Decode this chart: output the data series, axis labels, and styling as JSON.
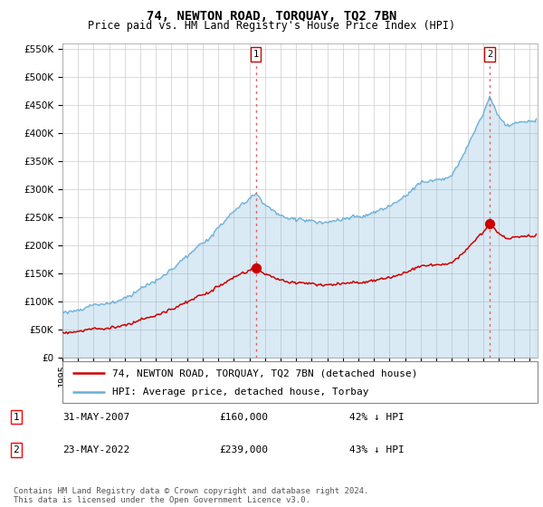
{
  "title": "74, NEWTON ROAD, TORQUAY, TQ2 7BN",
  "subtitle": "Price paid vs. HM Land Registry's House Price Index (HPI)",
  "ylim": [
    0,
    560000
  ],
  "yticks": [
    0,
    50000,
    100000,
    150000,
    200000,
    250000,
    300000,
    350000,
    400000,
    450000,
    500000,
    550000
  ],
  "hpi_color": "#6baed6",
  "hpi_fill_color": "#d6eaf8",
  "price_color": "#cc0000",
  "grid_color": "#cccccc",
  "background_color": "#ffffff",
  "legend_entry_1": "74, NEWTON ROAD, TORQUAY, TQ2 7BN (detached house)",
  "legend_entry_2": "HPI: Average price, detached house, Torbay",
  "transaction_1_date": "31-MAY-2007",
  "transaction_1_price": "£160,000",
  "transaction_1_hpi": "42% ↓ HPI",
  "transaction_2_date": "23-MAY-2022",
  "transaction_2_price": "£239,000",
  "transaction_2_hpi": "43% ↓ HPI",
  "footnote": "Contains HM Land Registry data © Crown copyright and database right 2024.\nThis data is licensed under the Open Government Licence v3.0.",
  "vline_color": "#e06060",
  "title_fontsize": 10,
  "subtitle_fontsize": 8.5,
  "tick_fontsize": 7.5,
  "axis_label_fontsize": 8,
  "legend_fontsize": 8,
  "table_fontsize": 8,
  "footnote_fontsize": 6.5,
  "t1_year": 2007.416,
  "t2_year": 2022.416,
  "t1_price": 160000,
  "t2_price": 239000
}
